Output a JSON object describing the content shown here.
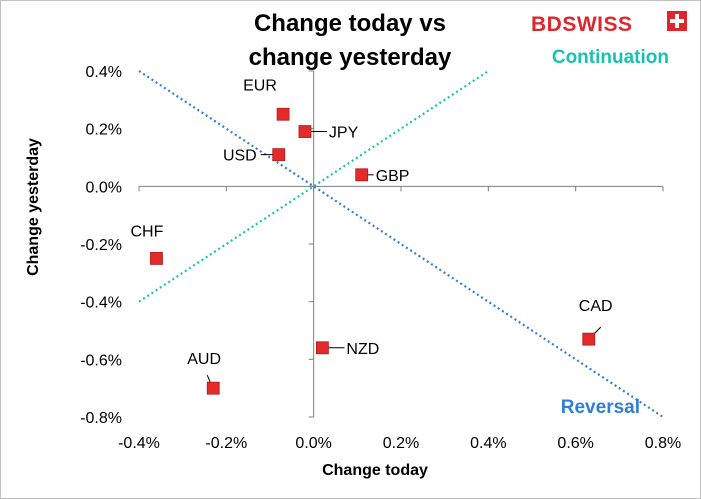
{
  "brand": {
    "logo_text": "BDSWISS"
  },
  "chart_data": {
    "type": "scatter",
    "title": "Change today vs change yesterday",
    "title_lines": [
      "Change today vs",
      "change yesterday"
    ],
    "xlabel": "Change today",
    "ylabel": "Change yesterday",
    "xlim": [
      -0.4,
      0.8
    ],
    "ylim": [
      -0.8,
      0.4
    ],
    "x_ticks": [
      -0.4,
      -0.2,
      0.0,
      0.2,
      0.4,
      0.6,
      0.8
    ],
    "y_ticks": [
      0.4,
      0.2,
      0.0,
      -0.2,
      -0.4,
      -0.6,
      -0.8
    ],
    "x_tick_labels": [
      "-0.4%",
      "-0.2%",
      "0.0%",
      "0.2%",
      "0.4%",
      "0.6%",
      "0.8%"
    ],
    "y_tick_labels": [
      "0.4%",
      "0.2%",
      "0.0%",
      "-0.2%",
      "-0.4%",
      "-0.6%",
      "-0.8%"
    ],
    "grid": false,
    "marker_color": "#e32b2b",
    "points": [
      {
        "label": "EUR",
        "x": -0.07,
        "y": 0.25
      },
      {
        "label": "JPY",
        "x": -0.02,
        "y": 0.19
      },
      {
        "label": "USD",
        "x": -0.08,
        "y": 0.11
      },
      {
        "label": "GBP",
        "x": 0.11,
        "y": 0.04
      },
      {
        "label": "CHF",
        "x": -0.36,
        "y": -0.25
      },
      {
        "label": "NZD",
        "x": 0.02,
        "y": -0.56
      },
      {
        "label": "AUD",
        "x": -0.23,
        "y": -0.7
      },
      {
        "label": "CAD",
        "x": 0.63,
        "y": -0.53
      }
    ],
    "reference_lines": [
      {
        "name": "Continuation",
        "color": "#19c2b0",
        "from": [
          -0.4,
          -0.4
        ],
        "to": [
          0.4,
          0.4
        ]
      },
      {
        "name": "Reversal",
        "color": "#2f7fd6",
        "from": [
          -0.4,
          0.4
        ],
        "to": [
          0.8,
          -0.8
        ]
      }
    ]
  }
}
